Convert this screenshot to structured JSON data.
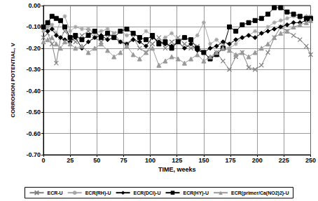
{
  "chart_data": {
    "type": "line",
    "x_label": "TIME, weeks",
    "y_label": "CORROSION POTENTIAL, V",
    "x": [
      0,
      4,
      8,
      12,
      16,
      20,
      25,
      30,
      36,
      42,
      48,
      54,
      60,
      66,
      72,
      78,
      84,
      90,
      96,
      102,
      108,
      114,
      120,
      126,
      132,
      138,
      144,
      150,
      156,
      162,
      168,
      174,
      180,
      186,
      192,
      198,
      204,
      210,
      216,
      222,
      228,
      234,
      240,
      246,
      250
    ],
    "series": [
      {
        "name": "ECR-U",
        "color": "#7f7f7f",
        "marker": "x",
        "values": [
          -0.15,
          -0.13,
          -0.18,
          -0.27,
          -0.15,
          -0.12,
          -0.15,
          -0.17,
          -0.14,
          -0.12,
          -0.15,
          -0.17,
          -0.15,
          -0.13,
          -0.17,
          -0.18,
          -0.15,
          -0.2,
          -0.22,
          -0.18,
          -0.15,
          -0.2,
          -0.17,
          -0.15,
          -0.18,
          -0.2,
          -0.19,
          -0.22,
          -0.25,
          -0.22,
          -0.26,
          -0.3,
          -0.24,
          -0.22,
          -0.29,
          -0.3,
          -0.28,
          -0.22,
          -0.15,
          -0.1,
          -0.12,
          -0.14,
          -0.16,
          -0.19,
          -0.23
        ]
      },
      {
        "name": "ECR(RH)-U",
        "color": "#a6a6a6",
        "marker": "star",
        "values": [
          -0.12,
          -0.1,
          -0.09,
          -0.13,
          -0.07,
          -0.05,
          -0.12,
          -0.1,
          -0.11,
          -0.11,
          -0.13,
          -0.12,
          -0.11,
          -0.13,
          -0.12,
          -0.14,
          -0.13,
          -0.15,
          -0.12,
          -0.14,
          -0.17,
          -0.15,
          -0.13,
          -0.16,
          -0.15,
          -0.17,
          -0.14,
          -0.08,
          -0.18,
          -0.16,
          -0.19,
          -0.2,
          -0.18,
          -0.15,
          -0.14,
          -0.12,
          -0.13,
          -0.1,
          -0.08,
          -0.07,
          -0.06,
          -0.05,
          -0.06,
          -0.05,
          -0.05
        ]
      },
      {
        "name": "ECR(DCI)-U",
        "color": "#000000",
        "marker": "diamond",
        "values": [
          -0.1,
          -0.12,
          -0.11,
          -0.14,
          -0.15,
          -0.16,
          -0.17,
          -0.15,
          -0.2,
          -0.17,
          -0.15,
          -0.14,
          -0.16,
          -0.15,
          -0.17,
          -0.18,
          -0.16,
          -0.17,
          -0.19,
          -0.15,
          -0.17,
          -0.18,
          -0.19,
          -0.17,
          -0.2,
          -0.18,
          -0.21,
          -0.22,
          -0.2,
          -0.19,
          -0.17,
          -0.18,
          -0.16,
          -0.15,
          -0.14,
          -0.15,
          -0.13,
          -0.12,
          -0.11,
          -0.1,
          -0.09,
          -0.08,
          -0.08,
          -0.07,
          -0.07
        ]
      },
      {
        "name": "ECR(HY)-U",
        "color": "#000000",
        "marker": "square",
        "values": [
          -0.1,
          -0.08,
          -0.05,
          -0.06,
          -0.07,
          -0.1,
          -0.15,
          -0.14,
          -0.16,
          -0.14,
          -0.12,
          -0.15,
          -0.13,
          -0.15,
          -0.12,
          -0.11,
          -0.13,
          -0.15,
          -0.16,
          -0.14,
          -0.18,
          -0.17,
          -0.2,
          -0.17,
          -0.15,
          -0.16,
          -0.2,
          -0.22,
          -0.25,
          -0.23,
          -0.2,
          -0.1,
          -0.12,
          -0.09,
          -0.08,
          -0.07,
          -0.06,
          -0.04,
          -0.01,
          -0.01,
          -0.03,
          -0.04,
          -0.05,
          -0.06,
          -0.06
        ]
      },
      {
        "name": "ECR(primer/Ca(NO2)2)-U",
        "color": "#999999",
        "marker": "triangle",
        "values": [
          -0.17,
          -0.16,
          -0.15,
          -0.18,
          -0.2,
          -0.17,
          -0.18,
          -0.2,
          -0.19,
          -0.22,
          -0.2,
          -0.18,
          -0.21,
          -0.24,
          -0.22,
          -0.19,
          -0.23,
          -0.25,
          -0.22,
          -0.2,
          -0.28,
          -0.26,
          -0.24,
          -0.25,
          -0.27,
          -0.25,
          -0.23,
          -0.26,
          -0.24,
          -0.22,
          -0.2,
          -0.21,
          -0.23,
          -0.22,
          -0.24,
          -0.22,
          -0.2,
          -0.18,
          -0.15,
          -0.13,
          -0.12,
          -0.1,
          -0.09,
          -0.08,
          -0.07
        ]
      }
    ],
    "xlim": [
      0,
      250
    ],
    "xticks": [
      0,
      25,
      50,
      75,
      100,
      125,
      150,
      175,
      200,
      225,
      250
    ],
    "ylim": [
      -0.7,
      0
    ],
    "yticks": [
      {
        "value": -0.7,
        "label": "-0.70"
      },
      {
        "value": -0.6,
        "label": "-0.60"
      },
      {
        "value": -0.5,
        "label": "-0.50"
      },
      {
        "value": -0.4,
        "label": "-0.40"
      },
      {
        "value": -0.3,
        "label": "-0.30"
      },
      {
        "value": -0.2,
        "label": "-0.20"
      },
      {
        "value": -0.1,
        "label": "-0.10"
      },
      {
        "value": 0,
        "label": "0.00"
      }
    ],
    "grid": true,
    "legend": "bottom"
  }
}
